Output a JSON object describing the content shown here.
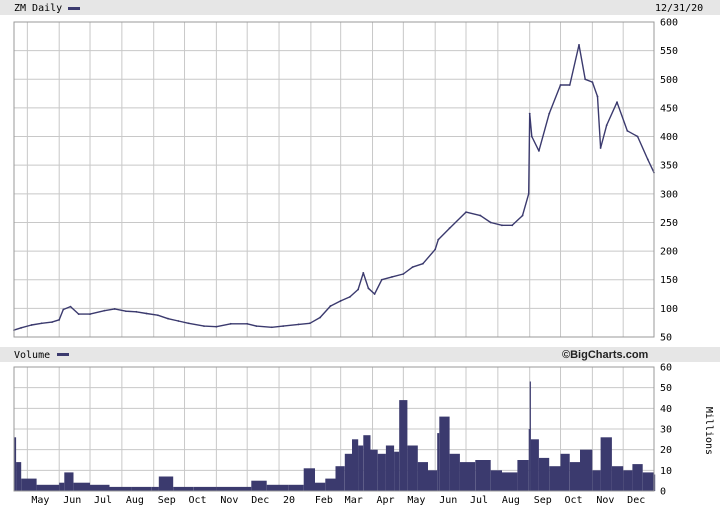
{
  "header": {
    "ticker_label": "ZM Daily",
    "date": "12/31/20",
    "volume_label": "Volume",
    "brand": "©BigCharts.com"
  },
  "colors": {
    "series": "#3b3a6e",
    "grid": "#c8c8c8",
    "frame": "#999999",
    "header_bg": "#e6e6e6"
  },
  "chart_data": [
    {
      "type": "line",
      "title": "ZM Daily",
      "x_start": "2019-04-18",
      "x_end": "2020-12-31",
      "x_tick_labels": [
        "May",
        "Jun",
        "Jul",
        "Aug",
        "Sep",
        "Oct",
        "Nov",
        "Dec",
        "20",
        "Feb",
        "Mar",
        "Apr",
        "May",
        "Jun",
        "Jul",
        "Aug",
        "Sep",
        "Oct",
        "Nov",
        "Dec"
      ],
      "ylim": [
        50,
        600
      ],
      "y_ticks": [
        50,
        100,
        150,
        200,
        250,
        300,
        350,
        400,
        450,
        500,
        550,
        600
      ],
      "grid": true,
      "series": [
        {
          "x": [
            "2019-04-18",
            "2019-04-25",
            "2019-05-05",
            "2019-05-15",
            "2019-05-25",
            "2019-06-01",
            "2019-06-05",
            "2019-06-12",
            "2019-06-20",
            "2019-07-01",
            "2019-07-15",
            "2019-07-25",
            "2019-08-05",
            "2019-08-15",
            "2019-08-25",
            "2019-09-05",
            "2019-09-15",
            "2019-09-25",
            "2019-10-05",
            "2019-10-20",
            "2019-11-01",
            "2019-11-15",
            "2019-12-01",
            "2019-12-10",
            "2019-12-25",
            "2020-01-05",
            "2020-01-20",
            "2020-01-31",
            "2020-02-10",
            "2020-02-20",
            "2020-03-01",
            "2020-03-10",
            "2020-03-18",
            "2020-03-23",
            "2020-03-28",
            "2020-04-03",
            "2020-04-10",
            "2020-04-20",
            "2020-05-01",
            "2020-05-10",
            "2020-05-20",
            "2020-06-01",
            "2020-06-04",
            "2020-06-15",
            "2020-07-01",
            "2020-07-15",
            "2020-07-25",
            "2020-08-05",
            "2020-08-15",
            "2020-08-25",
            "2020-08-31",
            "2020-09-01",
            "2020-09-03",
            "2020-09-10",
            "2020-09-20",
            "2020-10-01",
            "2020-10-10",
            "2020-10-19",
            "2020-10-25",
            "2020-11-01",
            "2020-11-06",
            "2020-11-09",
            "2020-11-15",
            "2020-11-25",
            "2020-12-05",
            "2020-12-15",
            "2020-12-25",
            "2020-12-31"
          ],
          "values": [
            62,
            66,
            71,
            74,
            76,
            80,
            98,
            103,
            90,
            90,
            96,
            99,
            95,
            94,
            91,
            88,
            82,
            78,
            74,
            69,
            68,
            73,
            73,
            69,
            67,
            69,
            72,
            74,
            84,
            104,
            113,
            120,
            133,
            162,
            135,
            125,
            150,
            155,
            160,
            172,
            178,
            203,
            220,
            240,
            268,
            262,
            250,
            245,
            245,
            262,
            300,
            440,
            400,
            375,
            440,
            490,
            490,
            560,
            500,
            495,
            470,
            380,
            420,
            460,
            410,
            400,
            360,
            337
          ]
        }
      ]
    },
    {
      "type": "bar",
      "title": "Volume",
      "x_start": "2019-04-18",
      "x_end": "2020-12-31",
      "ylabel": "Millions",
      "ylim": [
        0,
        60
      ],
      "y_ticks": [
        0,
        10,
        20,
        30,
        40,
        50,
        60
      ],
      "grid": true,
      "series": [
        {
          "name": "Volume",
          "x": [
            "2019-04-18",
            "2019-04-20",
            "2019-04-25",
            "2019-05-10",
            "2019-06-01",
            "2019-06-06",
            "2019-06-15",
            "2019-07-01",
            "2019-07-20",
            "2019-08-10",
            "2019-08-30",
            "2019-09-06",
            "2019-09-20",
            "2019-10-10",
            "2019-11-01",
            "2019-11-25",
            "2019-12-05",
            "2019-12-20",
            "2020-01-10",
            "2020-01-25",
            "2020-02-05",
            "2020-02-15",
            "2020-02-25",
            "2020-03-05",
            "2020-03-12",
            "2020-03-18",
            "2020-03-23",
            "2020-03-30",
            "2020-04-06",
            "2020-04-14",
            "2020-04-22",
            "2020-04-27",
            "2020-05-05",
            "2020-05-15",
            "2020-05-25",
            "2020-06-03",
            "2020-06-05",
            "2020-06-15",
            "2020-06-25",
            "2020-07-10",
            "2020-07-25",
            "2020-08-05",
            "2020-08-20",
            "2020-08-31",
            "2020-09-01",
            "2020-09-02",
            "2020-09-10",
            "2020-09-20",
            "2020-10-01",
            "2020-10-10",
            "2020-10-20",
            "2020-11-01",
            "2020-11-09",
            "2020-11-20",
            "2020-12-01",
            "2020-12-10",
            "2020-12-20",
            "2020-12-31"
          ],
          "values": [
            26,
            14,
            6,
            3,
            4,
            9,
            4,
            3,
            2,
            2,
            2,
            7,
            2,
            2,
            2,
            2,
            5,
            3,
            3,
            11,
            4,
            6,
            12,
            18,
            25,
            22,
            27,
            20,
            18,
            22,
            19,
            44,
            22,
            14,
            10,
            28,
            36,
            18,
            14,
            15,
            10,
            9,
            15,
            30,
            53,
            25,
            16,
            12,
            18,
            14,
            20,
            10,
            26,
            12,
            10,
            13,
            9,
            8
          ]
        }
      ]
    }
  ]
}
